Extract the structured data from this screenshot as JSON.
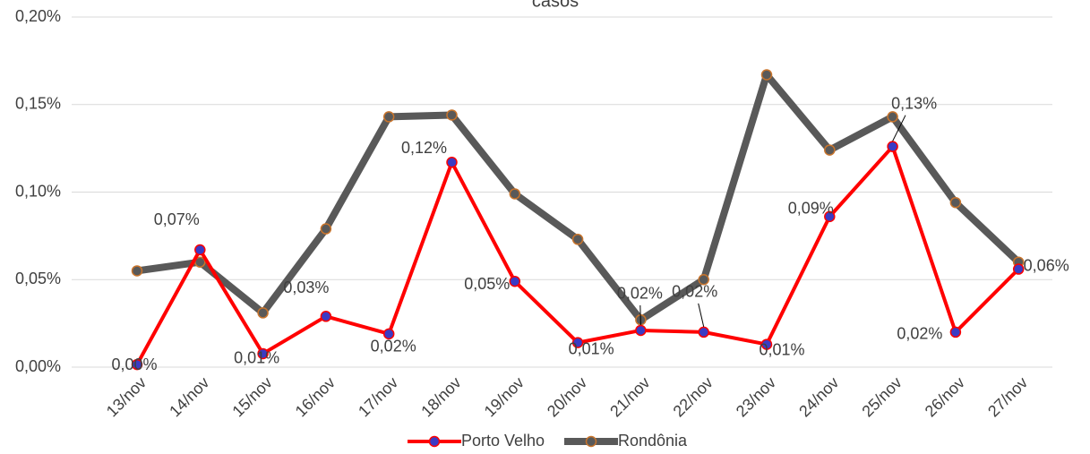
{
  "chart_data": {
    "type": "line",
    "title": "casos",
    "categories": [
      "13/nov",
      "14/nov",
      "15/nov",
      "16/nov",
      "17/nov",
      "18/nov",
      "19/nov",
      "20/nov",
      "21/nov",
      "22/nov",
      "23/nov",
      "24/nov",
      "25/nov",
      "26/nov",
      "27/nov"
    ],
    "series": [
      {
        "name": "Porto Velho",
        "color": "#ff0000",
        "marker_color": "#3b3bc4",
        "values": [
          0.0015,
          0.067,
          0.0077,
          0.029,
          0.019,
          0.117,
          0.049,
          0.014,
          0.021,
          0.02,
          0.013,
          0.086,
          0.126,
          0.02,
          0.056
        ],
        "value_labels": [
          "0,00%",
          "0,07%",
          "0,01%",
          "0,03%",
          "0,02%",
          "0,12%",
          "0,05%",
          "0,01%",
          "0,02%",
          "0,02%",
          "0,01%",
          "0,09%",
          "0,13%",
          "0,02%",
          "0,06%"
        ]
      },
      {
        "name": "Rondônia",
        "color": "#595959",
        "marker_color": "#c8742c",
        "values": [
          0.055,
          0.06,
          0.031,
          0.079,
          0.143,
          0.144,
          0.099,
          0.073,
          0.027,
          0.05,
          0.167,
          0.124,
          0.143,
          0.094,
          0.06
        ]
      }
    ],
    "ylim": [
      0,
      0.2
    ],
    "yticks": [
      {
        "value": 0,
        "label": "0,00%"
      },
      {
        "value": 0.05,
        "label": "0,05%"
      },
      {
        "value": 0.1,
        "label": "0,10%"
      },
      {
        "value": 0.15,
        "label": "0,15%"
      },
      {
        "value": 0.2,
        "label": "0,20%"
      }
    ],
    "grid": true,
    "legend": "bottom"
  }
}
